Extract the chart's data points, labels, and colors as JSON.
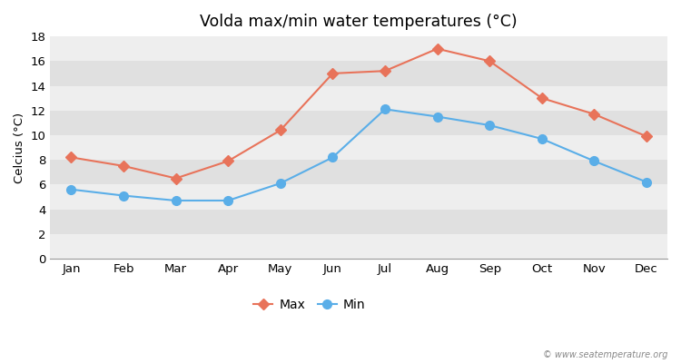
{
  "title": "Volda max/min water temperatures (°C)",
  "ylabel": "Celcius (°C)",
  "months": [
    "Jan",
    "Feb",
    "Mar",
    "Apr",
    "May",
    "Jun",
    "Jul",
    "Aug",
    "Sep",
    "Oct",
    "Nov",
    "Dec"
  ],
  "max_values": [
    8.2,
    7.5,
    6.5,
    7.9,
    10.4,
    15.0,
    15.2,
    17.0,
    16.0,
    13.0,
    11.7,
    9.9
  ],
  "min_values": [
    5.6,
    5.1,
    4.7,
    4.7,
    6.1,
    8.2,
    12.1,
    11.5,
    10.8,
    9.7,
    7.9,
    6.2
  ],
  "max_color": "#e8735a",
  "min_color": "#5aaee8",
  "figure_bg": "#ffffff",
  "plot_bg_light": "#eeeeee",
  "plot_bg_dark": "#e0e0e0",
  "ylim": [
    0,
    18
  ],
  "yticks": [
    0,
    2,
    4,
    6,
    8,
    10,
    12,
    14,
    16,
    18
  ],
  "watermark": "© www.seatemperature.org",
  "legend_labels": [
    "Max",
    "Min"
  ],
  "max_marker": "D",
  "min_marker": "o",
  "line_width": 1.5,
  "max_marker_size": 6,
  "min_marker_size": 7
}
